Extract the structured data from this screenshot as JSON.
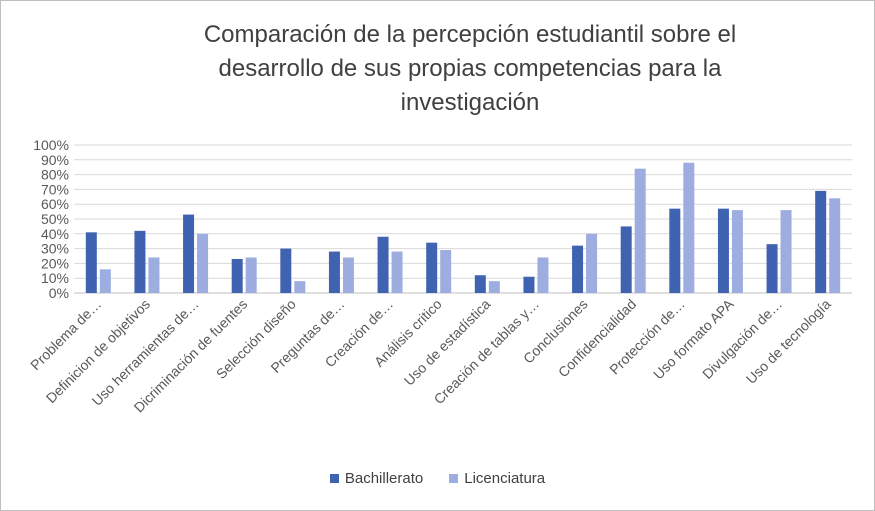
{
  "chart_data": {
    "type": "bar",
    "title_lines": [
      "Comparación de la percepción estudiantil sobre el",
      "desarrollo de sus propias competencias para la",
      "investigación"
    ],
    "categories": [
      "Problema de…",
      "Definicion de objetivos",
      "Uso herramientas de…",
      "Dicriminación de fuentes",
      "Selección diseño",
      "Preguntas de…",
      "Creación de…",
      "Análisis critico",
      "Uso de estadística",
      "Creación de tablas y…",
      "Conclusiones",
      "Confidencialidad",
      "Protección de…",
      "Uso formato  APA",
      "Divulgación de…",
      "Uso de tecnología"
    ],
    "series": [
      {
        "name": "Bachillerato",
        "color": "#3f63b0",
        "values": [
          41,
          42,
          53,
          23,
          30,
          28,
          38,
          34,
          12,
          11,
          32,
          45,
          57,
          57,
          33,
          69
        ]
      },
      {
        "name": "Licenciatura",
        "color": "#9dade0",
        "values": [
          16,
          24,
          40,
          24,
          8,
          24,
          28,
          29,
          8,
          24,
          40,
          84,
          88,
          56,
          56,
          64
        ]
      }
    ],
    "ylim": [
      0,
      100
    ],
    "yticks": [
      "0%",
      "10%",
      "20%",
      "30%",
      "40%",
      "50%",
      "60%",
      "70%",
      "80%",
      "90%",
      "100%"
    ],
    "xlabel": "",
    "ylabel": "",
    "grid": true,
    "legend_position": "bottom"
  }
}
